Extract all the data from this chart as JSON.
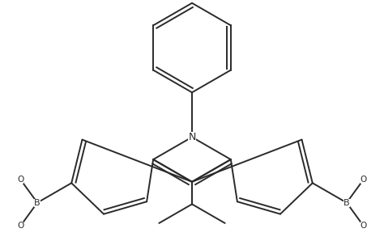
{
  "bg_color": "#ffffff",
  "line_color": "#2a2a2a",
  "line_width": 1.4,
  "figsize": [
    4.74,
    2.93
  ],
  "dpi": 100,
  "xlim": [
    -2.8,
    2.8
  ],
  "ylim": [
    -1.6,
    2.2
  ]
}
